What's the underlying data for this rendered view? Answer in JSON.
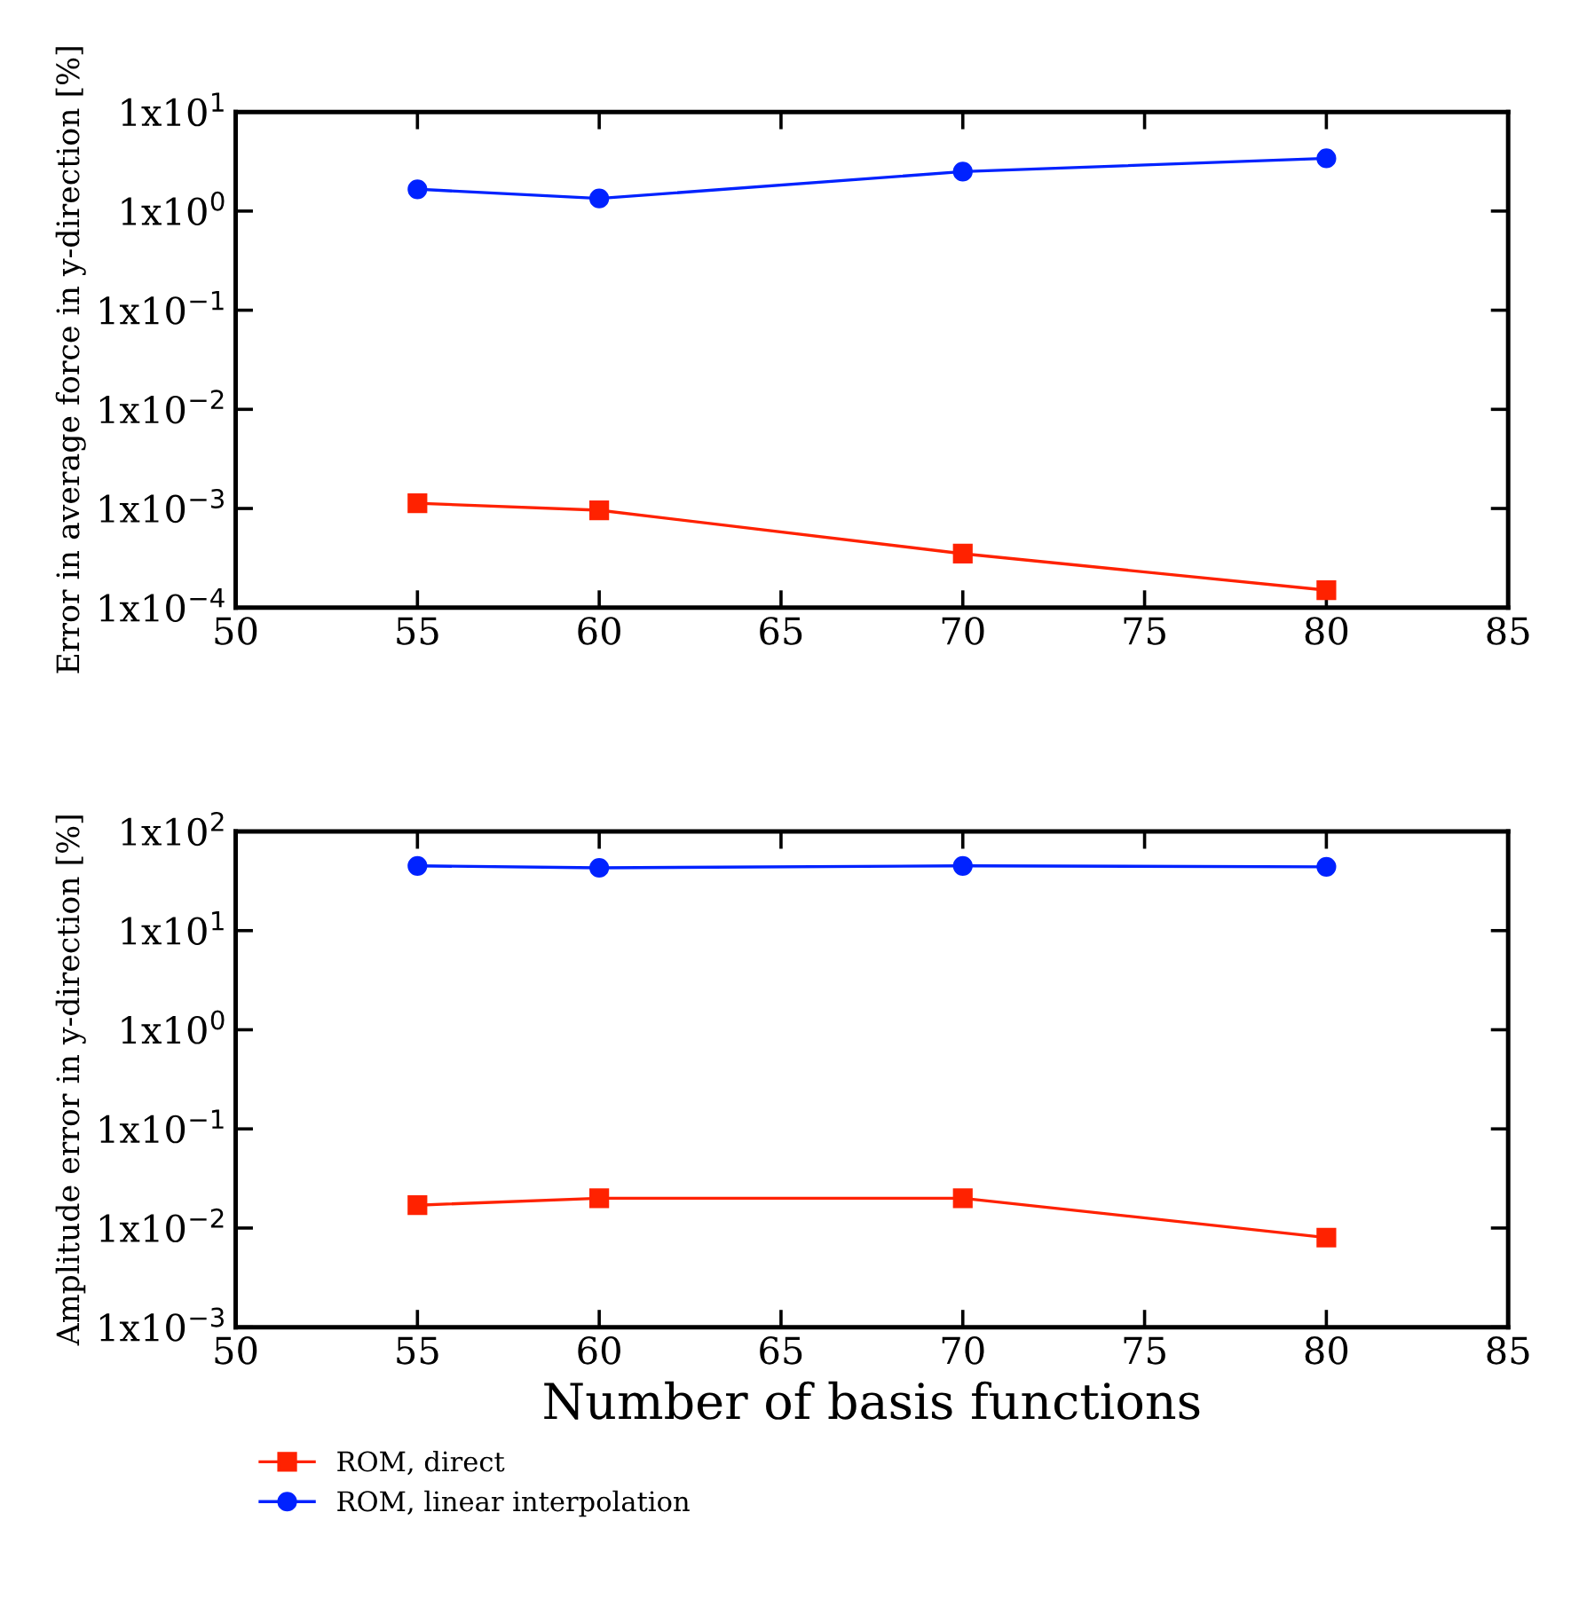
{
  "chart_data": [
    {
      "type": "line",
      "ylabel": "Error in average force in y-direction [%]",
      "x": [
        55,
        60,
        70,
        80
      ],
      "log": "y",
      "grid": false,
      "legend": false,
      "xlim": [
        50,
        85
      ],
      "xticks": [
        50,
        55,
        60,
        65,
        70,
        75,
        80,
        85
      ],
      "ylim": [
        0.0001,
        10
      ],
      "yticks": [
        {
          "value": 0.0001,
          "label": "1x10$^{−4}$"
        },
        {
          "value": 0.001,
          "label": "1x10$^{−3}$"
        },
        {
          "value": 0.01,
          "label": "1x10$^{−2}$"
        },
        {
          "value": 0.1,
          "label": "1x10$^{−1}$"
        },
        {
          "value": 1,
          "label": "1x10$^{0}$"
        },
        {
          "value": 10,
          "label": "1x10$^{1}$"
        }
      ],
      "series": [
        {
          "color": "#ff2200",
          "marker": "square",
          "values": [
            0.00113,
            0.00096,
            0.00035,
            0.00015
          ]
        },
        {
          "color": "#0022ff",
          "marker": "circle",
          "values": [
            1.66,
            1.34,
            2.5,
            3.4
          ]
        }
      ]
    },
    {
      "type": "line",
      "xlabel": "Number of basis functions",
      "ylabel": "Amplitude error in y-direction [%]",
      "x": [
        55,
        60,
        70,
        80
      ],
      "log": "y",
      "grid": false,
      "legend": "bottom",
      "xlim": [
        50,
        85
      ],
      "xticks": [
        50,
        55,
        60,
        65,
        70,
        75,
        80,
        85
      ],
      "ylim": [
        0.001,
        100
      ],
      "yticks": [
        {
          "value": 0.001,
          "label": "1x10$^{−3}$"
        },
        {
          "value": 0.01,
          "label": "1x10$^{−2}$"
        },
        {
          "value": 0.1,
          "label": "1x10$^{−1}$"
        },
        {
          "value": 1,
          "label": "1x10$^{0}$"
        },
        {
          "value": 10,
          "label": "1x10$^{1}$"
        },
        {
          "value": 100,
          "label": "1x10$^{2}$"
        }
      ],
      "series": [
        {
          "name": "ROM, direct",
          "color": "#ff2200",
          "marker": "square",
          "values": [
            0.017,
            0.02,
            0.02,
            0.008
          ]
        },
        {
          "name": "ROM, linear interpolation",
          "color": "#0022ff",
          "marker": "circle",
          "values": [
            45,
            43,
            45,
            44
          ]
        }
      ]
    }
  ]
}
